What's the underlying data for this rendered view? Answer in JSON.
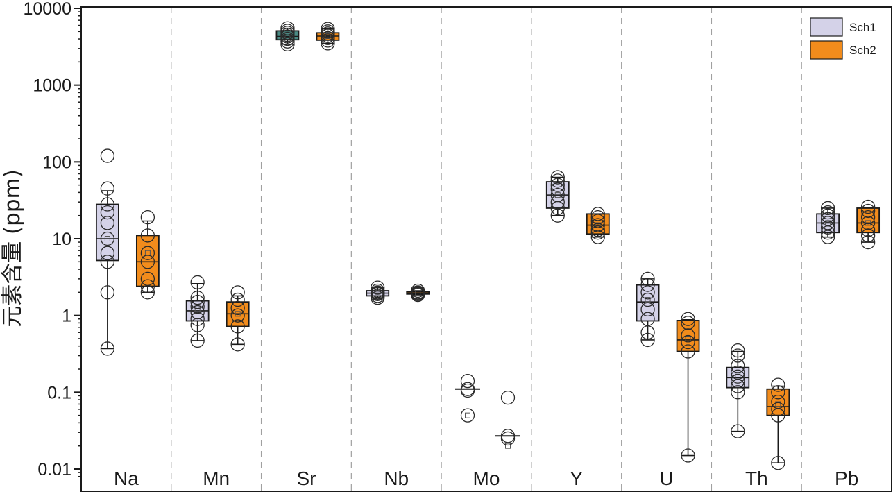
{
  "chart_data": {
    "type": "box",
    "ylabel": "元素含量 (ppm)",
    "yscale": "log",
    "ylim": [
      0.007,
      10000
    ],
    "yticks": [
      "10000",
      "1000",
      "100",
      "10",
      "1",
      "0.1",
      "0.01"
    ],
    "categories": [
      "Na",
      "Mn",
      "Sr",
      "Nb",
      "Mo",
      "Y",
      "U",
      "Th",
      "Pb"
    ],
    "legend_position": "top-right",
    "grid": "dashed vertical separators between categories",
    "series": [
      {
        "name": "Sch1",
        "color": "#d4d2e8",
        "boxes": [
          {
            "category": "Na",
            "q1": 5.2,
            "median": 10,
            "q3": 28,
            "mean": 10,
            "whisker_low": 0.37,
            "whisker_high": 42,
            "points": [
              120,
              45,
              28,
              22,
              16,
              10,
              6.5,
              5,
              2,
              0.37
            ]
          },
          {
            "category": "Mn",
            "q1": 0.85,
            "median": 1.15,
            "q3": 1.55,
            "mean": 1.15,
            "whisker_low": 0.47,
            "whisker_high": 2.6,
            "points": [
              2.7,
              1.7,
              1.5,
              1.3,
              1.1,
              0.9,
              0.75,
              0.47
            ]
          },
          {
            "category": "Sr",
            "q1": 3900,
            "median": 4300,
            "q3": 5100,
            "mean": 4500,
            "whisker_low": 3400,
            "whisker_high": 5500,
            "color": "#4a8a84",
            "points": [
              5500,
              5100,
              4800,
              4500,
              4300,
              4000,
              3700,
              3400
            ]
          },
          {
            "category": "Nb",
            "q1": 1.8,
            "median": 1.95,
            "q3": 2.1,
            "mean": 1.95,
            "whisker_low": 1.7,
            "whisker_high": 2.3,
            "points": [
              2.3,
              2.1,
              2.0,
              1.95,
              1.9,
              1.8,
              1.7
            ]
          },
          {
            "category": "Mo",
            "q1": 0.11,
            "median": 0.11,
            "q3": 0.11,
            "mean": 0.05,
            "whisker_low": 0.11,
            "whisker_high": 0.11,
            "points": [
              0.14,
              0.11,
              0.105,
              0.05
            ]
          },
          {
            "category": "Y",
            "q1": 25,
            "median": 37,
            "q3": 55,
            "mean": 37,
            "whisker_low": 20,
            "whisker_high": 63,
            "points": [
              63,
              57,
              50,
              44,
              37,
              30,
              25,
              20
            ]
          },
          {
            "category": "U",
            "q1": 0.85,
            "median": 1.5,
            "q3": 2.5,
            "mean": 1.6,
            "whisker_low": 0.48,
            "whisker_high": 3.0,
            "points": [
              3.0,
              2.5,
              2.0,
              1.6,
              1.2,
              0.9,
              0.6,
              0.48
            ]
          },
          {
            "category": "Th",
            "q1": 0.115,
            "median": 0.155,
            "q3": 0.21,
            "mean": 0.16,
            "whisker_low": 0.031,
            "whisker_high": 0.34,
            "points": [
              0.35,
              0.3,
              0.22,
              0.18,
              0.16,
              0.14,
              0.12,
              0.1,
              0.031
            ]
          },
          {
            "category": "Pb",
            "q1": 12,
            "median": 16,
            "q3": 21,
            "mean": 16,
            "whisker_low": 10.5,
            "whisker_high": 25,
            "points": [
              25,
              22,
              20,
              18,
              16,
              14,
              12,
              10.5
            ]
          }
        ]
      },
      {
        "name": "Sch2",
        "color": "#f28c1c",
        "boxes": [
          {
            "category": "Na",
            "q1": 2.4,
            "median": 5,
            "q3": 11,
            "mean": 6.5,
            "whisker_low": 2.0,
            "whisker_high": 17,
            "points": [
              19,
              11,
              6.5,
              5,
              3,
              2.4,
              2.0
            ]
          },
          {
            "category": "Mn",
            "q1": 0.72,
            "median": 1.05,
            "q3": 1.5,
            "mean": 1.05,
            "whisker_low": 0.42,
            "whisker_high": 1.8,
            "points": [
              2.0,
              1.6,
              1.25,
              1.0,
              0.72,
              0.42
            ]
          },
          {
            "category": "Sr",
            "q1": 3850,
            "median": 4350,
            "q3": 4800,
            "mean": 4350,
            "whisker_low": 3500,
            "whisker_high": 5400,
            "points": [
              5400,
              5000,
              4700,
              4400,
              4100,
              3800,
              3500
            ]
          },
          {
            "category": "Nb",
            "q1": 1.9,
            "median": 1.97,
            "q3": 2.05,
            "mean": 1.97,
            "whisker_low": 1.85,
            "whisker_high": 2.1,
            "points": [
              2.1,
              2.0,
              1.95,
              1.9,
              1.85
            ]
          },
          {
            "category": "Mo",
            "q1": 0.027,
            "median": 0.027,
            "q3": 0.027,
            "mean": 0.02,
            "whisker_low": 0.027,
            "whisker_high": 0.027,
            "points": [
              0.085,
              0.027,
              0.025
            ]
          },
          {
            "category": "Y",
            "q1": 11.5,
            "median": 15,
            "q3": 21,
            "mean": 15,
            "whisker_low": 10.5,
            "whisker_high": 21,
            "points": [
              21,
              19,
              17,
              15,
              13,
              12,
              10.5
            ]
          },
          {
            "category": "U",
            "q1": 0.34,
            "median": 0.48,
            "q3": 0.86,
            "mean": 0.5,
            "whisker_low": 0.015,
            "whisker_high": 0.88,
            "points": [
              0.9,
              0.8,
              0.55,
              0.45,
              0.34,
              0.015
            ]
          },
          {
            "category": "Th",
            "q1": 0.05,
            "median": 0.065,
            "q3": 0.11,
            "mean": 0.07,
            "whisker_low": 0.012,
            "whisker_high": 0.12,
            "points": [
              0.125,
              0.1,
              0.075,
              0.06,
              0.05,
              0.012
            ]
          },
          {
            "category": "Pb",
            "q1": 12,
            "median": 16,
            "q3": 25,
            "mean": 16,
            "whisker_low": 9,
            "whisker_high": 25,
            "points": [
              26,
              23,
              19,
              16,
              13,
              11,
              9
            ]
          }
        ]
      }
    ]
  }
}
